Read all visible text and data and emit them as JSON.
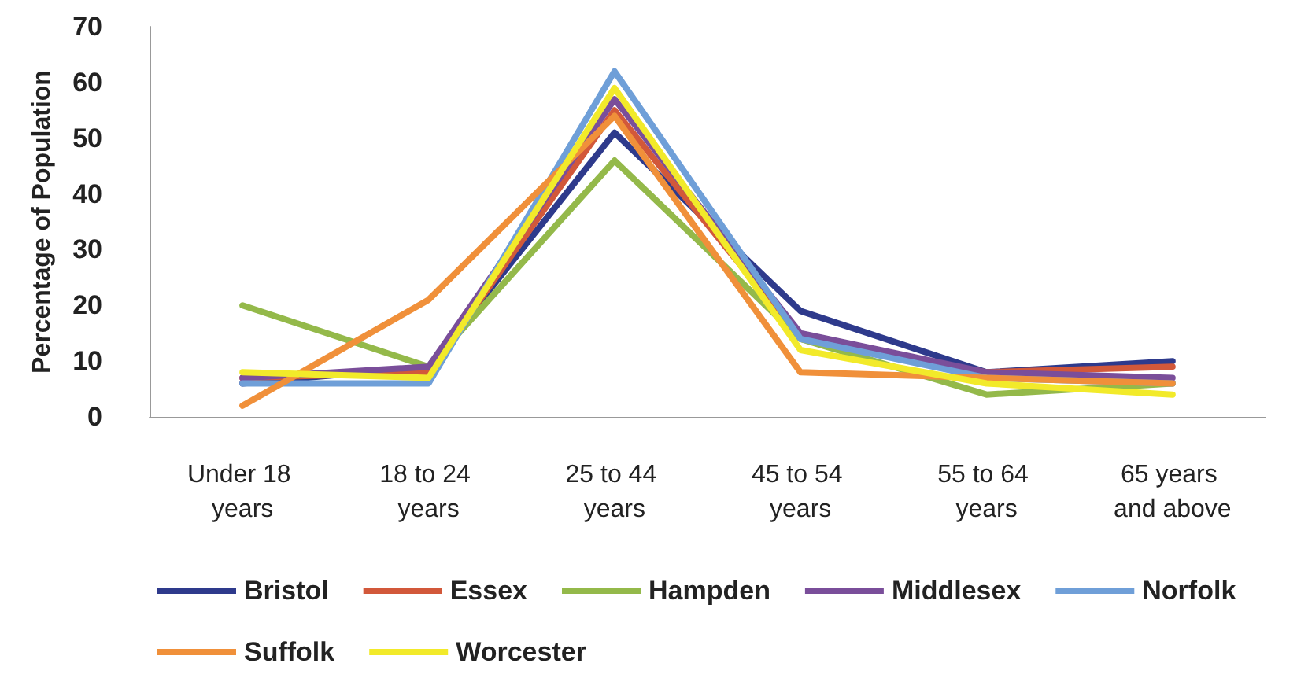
{
  "chart_data": {
    "type": "line",
    "ylabel": "Percentage of Population",
    "categories": [
      "Under 18 years",
      "18 to 24 years",
      "25 to 44 years",
      "45 to 54 years",
      "55 to 64 years",
      "65 years and above"
    ],
    "series": [
      {
        "name": "Bristol",
        "color": "#2e3a8c",
        "values": [
          6,
          9,
          51,
          19,
          8,
          10
        ]
      },
      {
        "name": "Essex",
        "color": "#d2583a",
        "values": [
          7,
          8,
          55,
          14,
          8,
          9
        ]
      },
      {
        "name": "Hampden",
        "color": "#94b94a",
        "values": [
          20,
          9,
          46,
          14,
          4,
          6
        ]
      },
      {
        "name": "Middlesex",
        "color": "#7a4e9a",
        "values": [
          7,
          9,
          57,
          15,
          8,
          7
        ]
      },
      {
        "name": "Norfolk",
        "color": "#6f9fd8",
        "values": [
          6,
          6,
          62,
          14,
          7,
          6
        ]
      },
      {
        "name": "Suffolk",
        "color": "#f0903a",
        "values": [
          2,
          21,
          54,
          8,
          7,
          6
        ]
      },
      {
        "name": "Worcester",
        "color": "#f2ea2a",
        "values": [
          8,
          7,
          59,
          12,
          6,
          4
        ]
      }
    ],
    "ylim": [
      0,
      70
    ],
    "yticks": [
      0,
      10,
      20,
      30,
      40,
      50,
      60,
      70
    ],
    "grid": false,
    "legend": "bottom",
    "marker": "none",
    "line_style": "solid"
  }
}
